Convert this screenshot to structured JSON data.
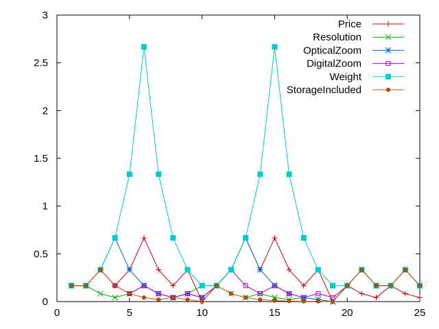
{
  "chart_data": {
    "type": "line",
    "title": "",
    "xlabel": "",
    "ylabel": "",
    "xlim": [
      0,
      25
    ],
    "ylim": [
      0,
      3
    ],
    "x_ticks": [
      "0",
      "5",
      "10",
      "15",
      "20",
      "25"
    ],
    "y_ticks": [
      "0",
      "0.5",
      "1",
      "1.5",
      "2",
      "2.5",
      "3"
    ],
    "grid": false,
    "legend_position": "top-right",
    "x": [
      1,
      2,
      3,
      4,
      5,
      6,
      7,
      8,
      9,
      10,
      11,
      12,
      13,
      14,
      15,
      16,
      17,
      18,
      19,
      20,
      21,
      22,
      23,
      24,
      25
    ],
    "series": [
      {
        "name": "Price",
        "color": "#cc0000",
        "marker": "plus",
        "values": [
          0.167,
          0.167,
          0.333,
          0.167,
          0.333,
          0.667,
          0.333,
          0.167,
          0.333,
          0.0,
          0.167,
          0.333,
          0.667,
          0.333,
          0.667,
          0.333,
          0.167,
          0.333,
          0.0,
          0.167,
          0.083,
          0.042,
          0.167,
          0.083,
          0.042
        ]
      },
      {
        "name": "Resolution",
        "color": "#00aa00",
        "marker": "cross",
        "values": [
          0.167,
          0.167,
          0.083,
          0.042,
          0.083,
          0.167,
          0.083,
          0.042,
          0.083,
          0.167,
          0.167,
          0.083,
          0.042,
          0.083,
          0.042,
          0.021,
          0.042,
          0.021,
          0.0,
          0.167,
          0.333,
          0.167,
          0.167,
          0.333,
          0.167
        ]
      },
      {
        "name": "OpticalZoom",
        "color": "#0066cc",
        "marker": "star",
        "values": [
          0.167,
          0.167,
          0.333,
          0.667,
          0.333,
          0.167,
          0.083,
          0.042,
          0.083,
          0.042,
          0.167,
          0.333,
          0.667,
          0.333,
          0.167,
          0.083,
          0.042,
          0.021,
          0.0,
          0.167,
          0.333,
          0.167,
          0.167,
          0.333,
          0.167
        ]
      },
      {
        "name": "DigitalZoom",
        "color": "#aa00cc",
        "marker": "open-square",
        "values": [
          0.167,
          0.167,
          0.333,
          0.167,
          0.083,
          0.167,
          0.083,
          0.042,
          0.083,
          0.042,
          0.167,
          0.333,
          0.167,
          0.083,
          0.167,
          0.083,
          0.042,
          0.083,
          0.042,
          0.167,
          0.333,
          0.167,
          0.167,
          0.333,
          0.167
        ]
      },
      {
        "name": "Weight",
        "color": "#00cccc",
        "marker": "filled-square",
        "values": [
          0.167,
          0.167,
          0.333,
          0.667,
          1.333,
          2.667,
          1.333,
          0.667,
          0.333,
          0.167,
          0.167,
          0.333,
          0.667,
          1.333,
          2.667,
          1.333,
          0.667,
          0.333,
          0.167,
          0.167,
          0.333,
          0.167,
          0.167,
          0.333,
          0.167
        ]
      },
      {
        "name": "StorageIncluded",
        "color": "#cc5500",
        "marker": "circle",
        "values": [
          0.167,
          0.167,
          0.333,
          0.167,
          0.083,
          0.042,
          0.021,
          0.042,
          0.021,
          0.0,
          0.167,
          0.083,
          0.042,
          0.021,
          0.01,
          0.005,
          0.003,
          0.003,
          0.0,
          0.167,
          0.333,
          0.167,
          0.167,
          0.333,
          0.167
        ]
      }
    ]
  }
}
